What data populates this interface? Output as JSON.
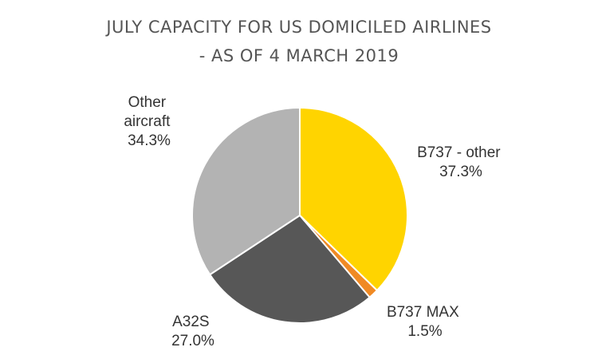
{
  "chart_data": {
    "type": "pie",
    "title_lines": [
      "JULY CAPACITY FOR US DOMICILED AIRLINES",
      "- AS OF 4 MARCH 2019"
    ],
    "slices": [
      {
        "name": "B737 - other",
        "label_lines": [
          "B737 - other",
          "37.3%"
        ],
        "value": 37.3,
        "color": "#FFD400"
      },
      {
        "name": "B737 MAX",
        "label_lines": [
          "B737 MAX",
          "1.5%"
        ],
        "value": 1.5,
        "color": "#F08A24"
      },
      {
        "name": "A32S",
        "label_lines": [
          "A32S",
          "27.0%"
        ],
        "value": 27.0,
        "color": "#575757"
      },
      {
        "name": "Other aircraft",
        "label_lines": [
          "Other aircraft",
          "34.3%"
        ],
        "value": 34.3,
        "color": "#B3B3B3"
      }
    ],
    "legend": "none"
  }
}
